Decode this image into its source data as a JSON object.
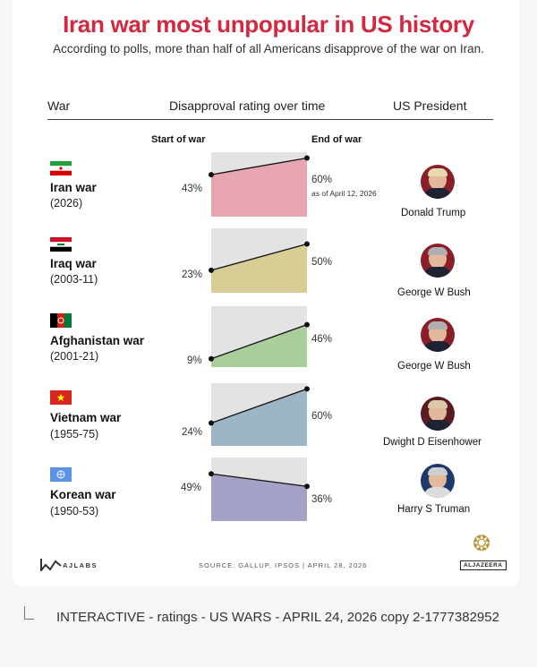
{
  "chart_data": {
    "type": "line",
    "title": "Iran war most unpopular in US history",
    "subtitle": "According to polls, more than half of all Americans disapprove of the war on Iran.",
    "columns": {
      "war": "War",
      "rating": "Disapproval rating over time",
      "president": "US President"
    },
    "start_label": "Start of war",
    "end_label": "End of war",
    "ylim": [
      0,
      100
    ],
    "rows": [
      {
        "war": "Iran war",
        "years": "(2026)",
        "start": 43,
        "end": 60,
        "start_label": "43%",
        "end_label": "60%",
        "note": "as of April 12, 2026",
        "president": "Donald Trump",
        "color": "#e7a5b1"
      },
      {
        "war": "Iraq war",
        "years": "(2003-11)",
        "start": 23,
        "end": 50,
        "start_label": "23%",
        "end_label": "50%",
        "note": "",
        "president": "George W Bush",
        "color": "#d8cd94"
      },
      {
        "war": "Afghanistan war",
        "years": "(2001-21)",
        "start": 9,
        "end": 46,
        "start_label": "9%",
        "end_label": "46%",
        "note": "",
        "president": "George W Bush",
        "color": "#a8cf9a"
      },
      {
        "war": "Vietnam war",
        "years": "(1955-75)",
        "start": 24,
        "end": 60,
        "start_label": "24%",
        "end_label": "60%",
        "note": "",
        "president": "Dwight D Eisenhower",
        "color": "#9cb6c8"
      },
      {
        "war": "Korean war",
        "years": "(1950-53)",
        "start": 49,
        "end": 36,
        "start_label": "49%",
        "end_label": "36%",
        "note": "",
        "president": "Harry S Truman",
        "color": "#a4a1c6"
      }
    ]
  },
  "footer": {
    "source": "SOURCE: GALLUP, IPSOS | APRIL 28, 2026",
    "left_logo": "AJLABS",
    "right_logo": "ALJAZEERA"
  },
  "caption": "INTERACTIVE - ratings - US WARS - APRIL 24, 2026 copy 2-1777382952",
  "icons": {
    "caption_icon": "file-corner-icon",
    "source_logo": "ajlabs-logo-icon",
    "brand_logo": "aljazeera-logo-icon"
  }
}
